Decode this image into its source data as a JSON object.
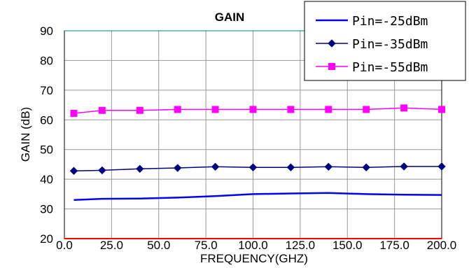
{
  "chart_data": {
    "type": "line",
    "title": "GAIN",
    "xlabel": "FREQUENCY(GHZ)",
    "ylabel": "GAIN (dB)",
    "xlim": [
      0,
      200
    ],
    "ylim": [
      20,
      90
    ],
    "xticks": [
      "0.0",
      "25.0",
      "50.0",
      "75.0",
      "100.0",
      "125.0",
      "150.0",
      "175.0",
      "200.0"
    ],
    "yticks": [
      "20",
      "30",
      "40",
      "50",
      "60",
      "70",
      "80",
      "90"
    ],
    "grid": true,
    "legend_position": "top-right",
    "series": [
      {
        "name": "Pin=-25dBm",
        "color": "#0000ff",
        "marker": "none",
        "x": [
          5,
          20,
          40,
          60,
          80,
          100,
          120,
          140,
          160,
          180,
          200
        ],
        "y": [
          33,
          33.4,
          33.5,
          33.8,
          34.3,
          35.0,
          35.2,
          35.4,
          35.0,
          34.8,
          34.7
        ]
      },
      {
        "name": "Pin=-35dBm",
        "color": "#000080",
        "marker": "diamond",
        "x": [
          5,
          20,
          40,
          60,
          80,
          100,
          120,
          140,
          160,
          180,
          200
        ],
        "y": [
          42.8,
          43.0,
          43.5,
          43.8,
          44.2,
          44.0,
          44.0,
          44.2,
          44.0,
          44.3,
          44.3
        ]
      },
      {
        "name": "Pin=-55dBm",
        "color": "#ff00ff",
        "marker": "square",
        "x": [
          5,
          20,
          40,
          60,
          80,
          100,
          120,
          140,
          160,
          180,
          200
        ],
        "y": [
          62.2,
          63.2,
          63.2,
          63.5,
          63.5,
          63.5,
          63.5,
          63.5,
          63.5,
          64.0,
          63.5
        ]
      }
    ]
  }
}
